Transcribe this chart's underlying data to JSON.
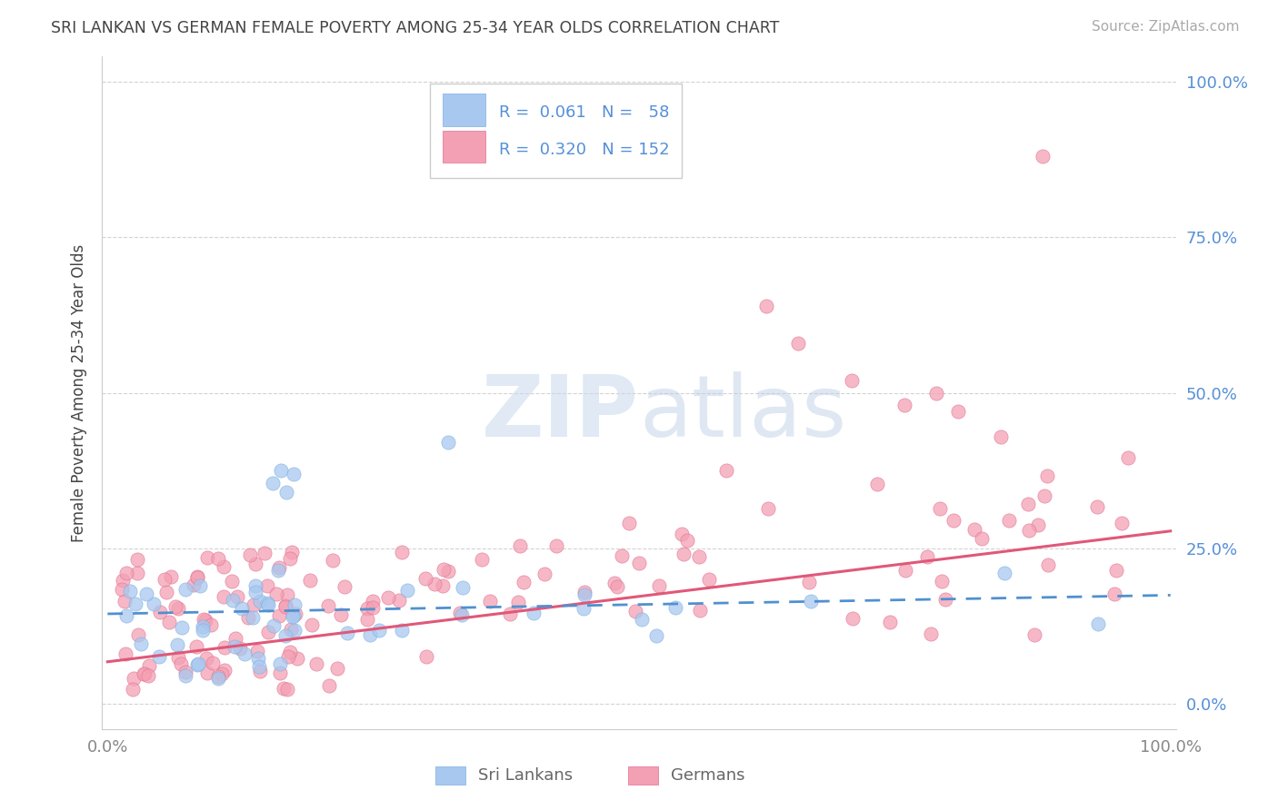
{
  "title": "SRI LANKAN VS GERMAN FEMALE POVERTY AMONG 25-34 YEAR OLDS CORRELATION CHART",
  "source": "Source: ZipAtlas.com",
  "ylabel": "Female Poverty Among 25-34 Year Olds",
  "sri_lankan_color": "#a8c8f0",
  "sri_lankan_edge": "#7ab0e0",
  "german_color": "#f4a0b4",
  "german_edge": "#e07090",
  "sri_lankan_line_color": "#5090d0",
  "german_line_color": "#e05878",
  "watermark_color": "#d0dff0",
  "background_color": "#ffffff",
  "grid_color": "#c8c8c8",
  "tick_color_y": "#5590d8",
  "tick_color_x": "#888888",
  "title_color": "#444444",
  "source_color": "#aaaaaa",
  "legend_text_color": "#5590d8"
}
